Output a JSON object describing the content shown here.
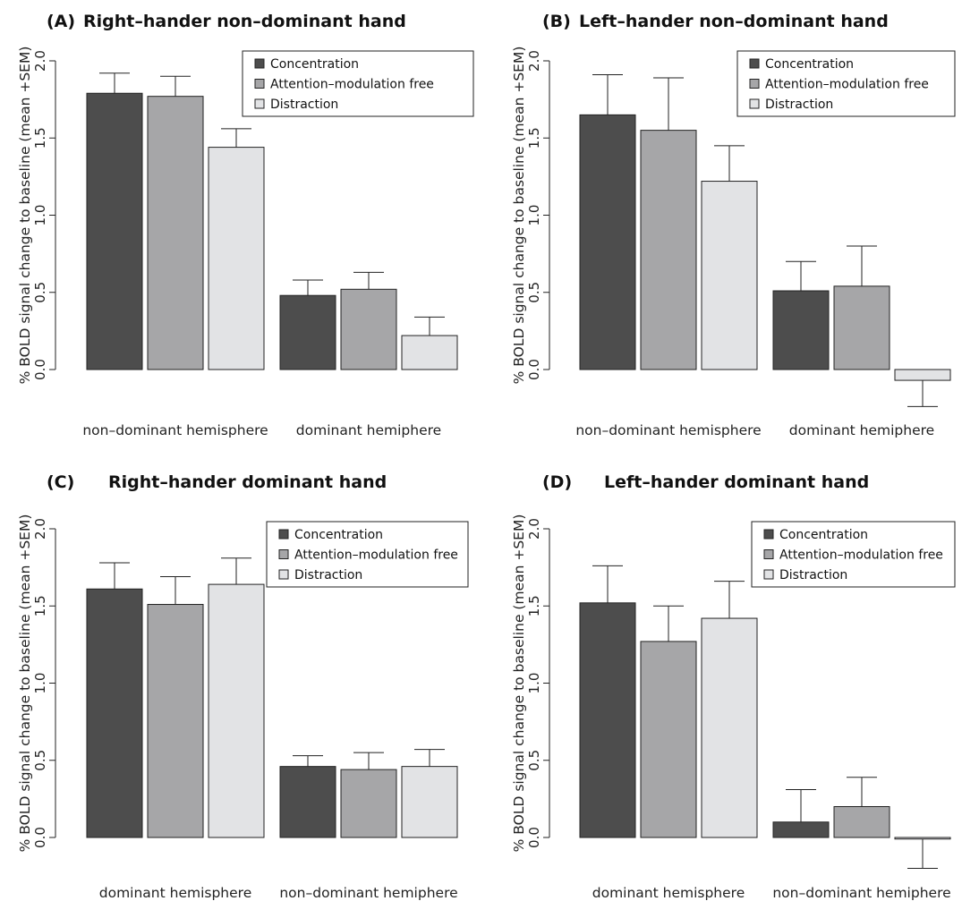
{
  "colors": {
    "concentration": "#4d4d4d",
    "attention": "#a6a6a8",
    "distraction": "#e2e3e5"
  },
  "chart_data": [
    {
      "panel": "A",
      "type": "bar",
      "label": "(A)",
      "title": "Right–hander non–dominant hand",
      "ylabel": "% BOLD signal change to baseline (mean +SEM)",
      "xlabel": "",
      "ylim": [
        0,
        2
      ],
      "yticks": [
        "0.0",
        "0.5",
        "1.0",
        "1.5",
        "2.0"
      ],
      "legend": "top-right",
      "grid": false,
      "categories": [
        "non–dominant hemisphere",
        "dominant hemiphere"
      ],
      "series": [
        {
          "name": "Concentration",
          "values": [
            1.79,
            0.48
          ],
          "sem": [
            0.13,
            0.1
          ]
        },
        {
          "name": "Attention–modulation free",
          "values": [
            1.77,
            0.52
          ],
          "sem": [
            0.13,
            0.11
          ]
        },
        {
          "name": "Distraction",
          "values": [
            1.44,
            0.22
          ],
          "sem": [
            0.12,
            0.12
          ]
        }
      ]
    },
    {
      "panel": "B",
      "type": "bar",
      "label": "(B)",
      "title": "Left–hander non–dominant hand",
      "ylabel": "% BOLD signal change to baseline (mean +SEM)",
      "xlabel": "",
      "ylim": [
        0,
        2
      ],
      "yticks": [
        "0.0",
        "0.5",
        "1.0",
        "1.5",
        "2.0"
      ],
      "legend": "top-right",
      "grid": false,
      "categories": [
        "non–dominant hemisphere",
        "dominant hemiphere"
      ],
      "series": [
        {
          "name": "Concentration",
          "values": [
            1.65,
            0.51
          ],
          "sem": [
            0.26,
            0.19
          ]
        },
        {
          "name": "Attention–modulation free",
          "values": [
            1.55,
            0.54
          ],
          "sem": [
            0.34,
            0.26
          ]
        },
        {
          "name": "Distraction",
          "values": [
            1.22,
            -0.07
          ],
          "sem": [
            0.23,
            0.17
          ]
        }
      ]
    },
    {
      "panel": "C",
      "type": "bar",
      "label": "(C)",
      "title": "Right–hander dominant hand",
      "ylabel": "% BOLD signal change to baseline (mean +SEM)",
      "xlabel": "",
      "ylim": [
        0,
        2
      ],
      "yticks": [
        "0.0",
        "0.5",
        "1.0",
        "1.5",
        "2.0"
      ],
      "legend": "top-right",
      "grid": false,
      "categories": [
        "dominant hemisphere",
        "non–dominant hemiphere"
      ],
      "series": [
        {
          "name": "Concentration",
          "values": [
            1.61,
            0.46
          ],
          "sem": [
            0.17,
            0.07
          ]
        },
        {
          "name": "Attention–modulation free",
          "values": [
            1.51,
            0.44
          ],
          "sem": [
            0.18,
            0.11
          ]
        },
        {
          "name": "Distraction",
          "values": [
            1.64,
            0.46
          ],
          "sem": [
            0.17,
            0.11
          ]
        }
      ]
    },
    {
      "panel": "D",
      "type": "bar",
      "label": "(D)",
      "title": "Left–hander dominant hand",
      "ylabel": "% BOLD signal change to baseline (mean +SEM)",
      "xlabel": "",
      "ylim": [
        0,
        2
      ],
      "yticks": [
        "0.0",
        "0.5",
        "1.0",
        "1.5",
        "2.0"
      ],
      "legend": "top-right",
      "grid": false,
      "categories": [
        "dominant hemisphere",
        "non–dominant hemiphere"
      ],
      "series": [
        {
          "name": "Concentration",
          "values": [
            1.52,
            0.1
          ],
          "sem": [
            0.24,
            0.21
          ]
        },
        {
          "name": "Attention–modulation free",
          "values": [
            1.27,
            0.2
          ],
          "sem": [
            0.23,
            0.19
          ]
        },
        {
          "name": "Distraction",
          "values": [
            1.42,
            -0.01
          ],
          "sem": [
            0.24,
            0.19
          ]
        }
      ]
    }
  ]
}
